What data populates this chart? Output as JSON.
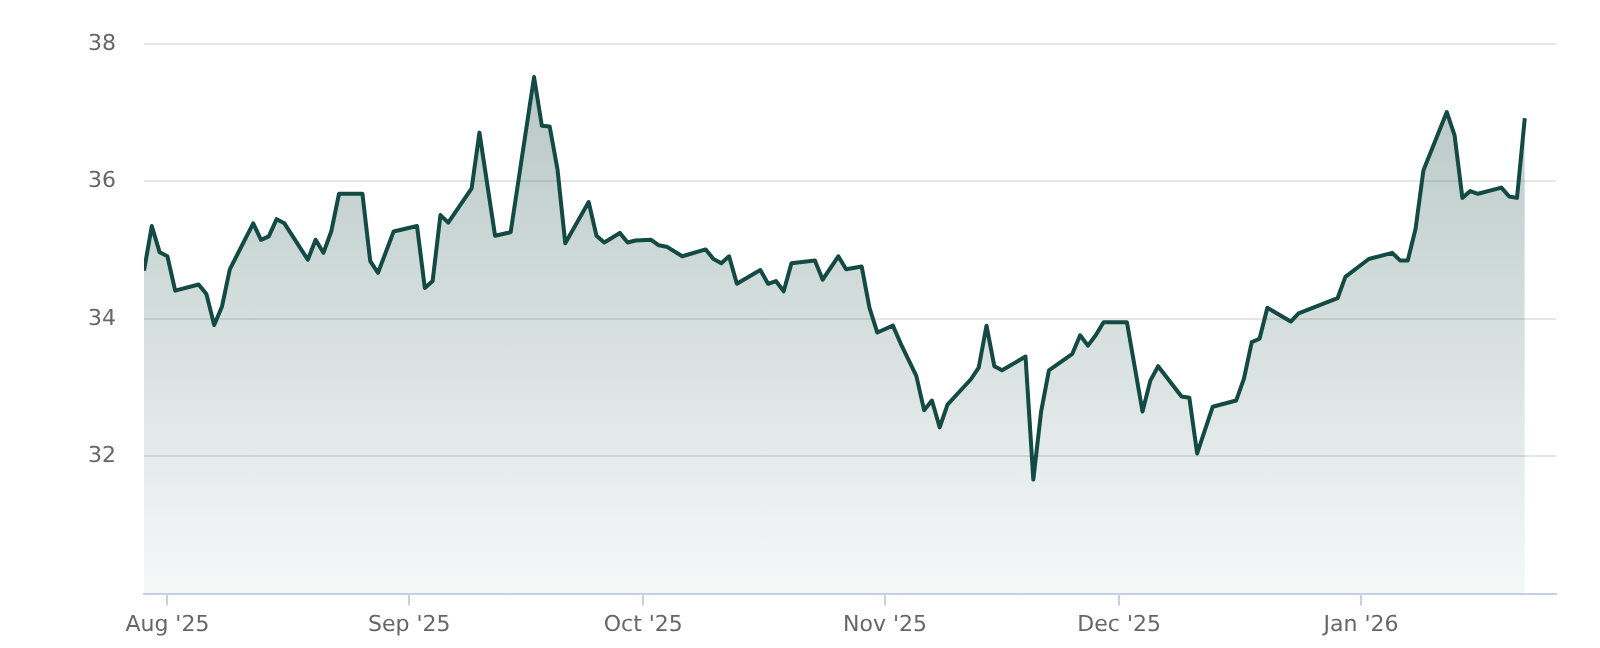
{
  "chart_data": {
    "type": "area",
    "x": [
      "2025-07-29",
      "2025-07-30",
      "2025-07-31",
      "2025-08-01",
      "2025-08-02",
      "2025-08-05",
      "2025-08-06",
      "2025-08-07",
      "2025-08-08",
      "2025-08-09",
      "2025-08-12",
      "2025-08-13",
      "2025-08-14",
      "2025-08-15",
      "2025-08-16",
      "2025-08-19",
      "2025-08-20",
      "2025-08-21",
      "2025-08-22",
      "2025-08-23",
      "2025-08-26",
      "2025-08-27",
      "2025-08-28",
      "2025-08-30",
      "2025-09-02",
      "2025-09-03",
      "2025-09-04",
      "2025-09-05",
      "2025-09-06",
      "2025-09-09",
      "2025-09-10",
      "2025-09-12",
      "2025-09-14",
      "2025-09-17",
      "2025-09-18",
      "2025-09-19",
      "2025-09-20",
      "2025-09-21",
      "2025-09-24",
      "2025-09-25",
      "2025-09-26",
      "2025-09-28",
      "2025-09-29",
      "2025-09-30",
      "2025-10-02",
      "2025-10-03",
      "2025-10-04",
      "2025-10-06",
      "2025-10-09",
      "2025-10-10",
      "2025-10-11",
      "2025-10-12",
      "2025-10-13",
      "2025-10-16",
      "2025-10-17",
      "2025-10-18",
      "2025-10-19",
      "2025-10-20",
      "2025-10-23",
      "2025-10-24",
      "2025-10-26",
      "2025-10-27",
      "2025-10-29",
      "2025-10-30",
      "2025-10-31",
      "2025-11-02",
      "2025-11-03",
      "2025-11-05",
      "2025-11-06",
      "2025-11-07",
      "2025-11-08",
      "2025-11-09",
      "2025-11-12",
      "2025-11-13",
      "2025-11-14",
      "2025-11-15",
      "2025-11-16",
      "2025-11-19",
      "2025-11-20",
      "2025-11-21",
      "2025-11-22",
      "2025-11-25",
      "2025-11-26",
      "2025-11-27",
      "2025-11-28",
      "2025-11-29",
      "2025-12-02",
      "2025-12-04",
      "2025-12-05",
      "2025-12-06",
      "2025-12-09",
      "2025-12-10",
      "2025-12-11",
      "2025-12-13",
      "2025-12-16",
      "2025-12-17",
      "2025-12-18",
      "2025-12-19",
      "2025-12-20",
      "2025-12-23",
      "2025-12-24",
      "2025-12-29",
      "2025-12-30",
      "2026-01-02",
      "2026-01-05",
      "2026-01-06",
      "2026-01-07",
      "2026-01-08",
      "2026-01-09",
      "2026-01-12",
      "2026-01-13",
      "2026-01-14",
      "2026-01-15",
      "2026-01-16",
      "2026-01-19",
      "2026-01-20",
      "2026-01-21",
      "2026-01-22"
    ],
    "series": [
      {
        "color": "#134a44",
        "values": [
          34.7,
          35.35,
          34.97,
          34.91,
          34.41,
          34.5,
          34.36,
          33.91,
          34.18,
          34.72,
          35.39,
          35.15,
          35.2,
          35.45,
          35.39,
          34.86,
          35.15,
          34.96,
          35.27,
          35.82,
          35.82,
          34.84,
          34.67,
          35.27,
          35.35,
          34.45,
          34.55,
          35.51,
          35.4,
          35.9,
          36.71,
          35.21,
          35.26,
          37.52,
          36.81,
          36.8,
          36.18,
          35.1,
          35.7,
          35.21,
          35.11,
          35.25,
          35.11,
          35.14,
          35.15,
          35.07,
          35.05,
          34.91,
          35.01,
          34.87,
          34.81,
          34.91,
          34.51,
          34.71,
          34.51,
          34.55,
          34.4,
          34.81,
          34.85,
          34.57,
          34.91,
          34.72,
          34.76,
          34.16,
          33.8,
          33.9,
          33.64,
          33.17,
          32.67,
          32.81,
          32.42,
          32.75,
          33.12,
          33.29,
          33.9,
          33.31,
          33.25,
          33.45,
          31.66,
          32.65,
          33.25,
          33.49,
          33.76,
          33.61,
          33.76,
          33.95,
          33.95,
          32.65,
          33.1,
          33.31,
          32.87,
          32.85,
          32.04,
          32.72,
          32.81,
          33.13,
          33.66,
          33.71,
          34.16,
          33.96,
          34.08,
          34.3,
          34.61,
          34.87,
          34.96,
          34.85,
          34.85,
          35.31,
          36.16,
          37.01,
          36.67,
          35.76,
          35.86,
          35.82,
          35.91,
          35.78,
          35.76,
          36.92
        ]
      }
    ],
    "xlim": [
      "2025-07-29",
      "2026-01-26"
    ],
    "xticks": [
      {
        "value": "2025-08-01",
        "label": "Aug '25"
      },
      {
        "value": "2025-09-01",
        "label": "Sep '25"
      },
      {
        "value": "2025-10-01",
        "label": "Oct '25"
      },
      {
        "value": "2025-11-01",
        "label": "Nov '25"
      },
      {
        "value": "2025-12-01",
        "label": "Dec '25"
      },
      {
        "value": "2026-01-01",
        "label": "Jan '26"
      }
    ],
    "ylim": [
      30,
      38
    ],
    "yticks": [
      32,
      34,
      36,
      38
    ],
    "grid": "y",
    "legend": false,
    "marker": "none",
    "line_style": "solid"
  }
}
